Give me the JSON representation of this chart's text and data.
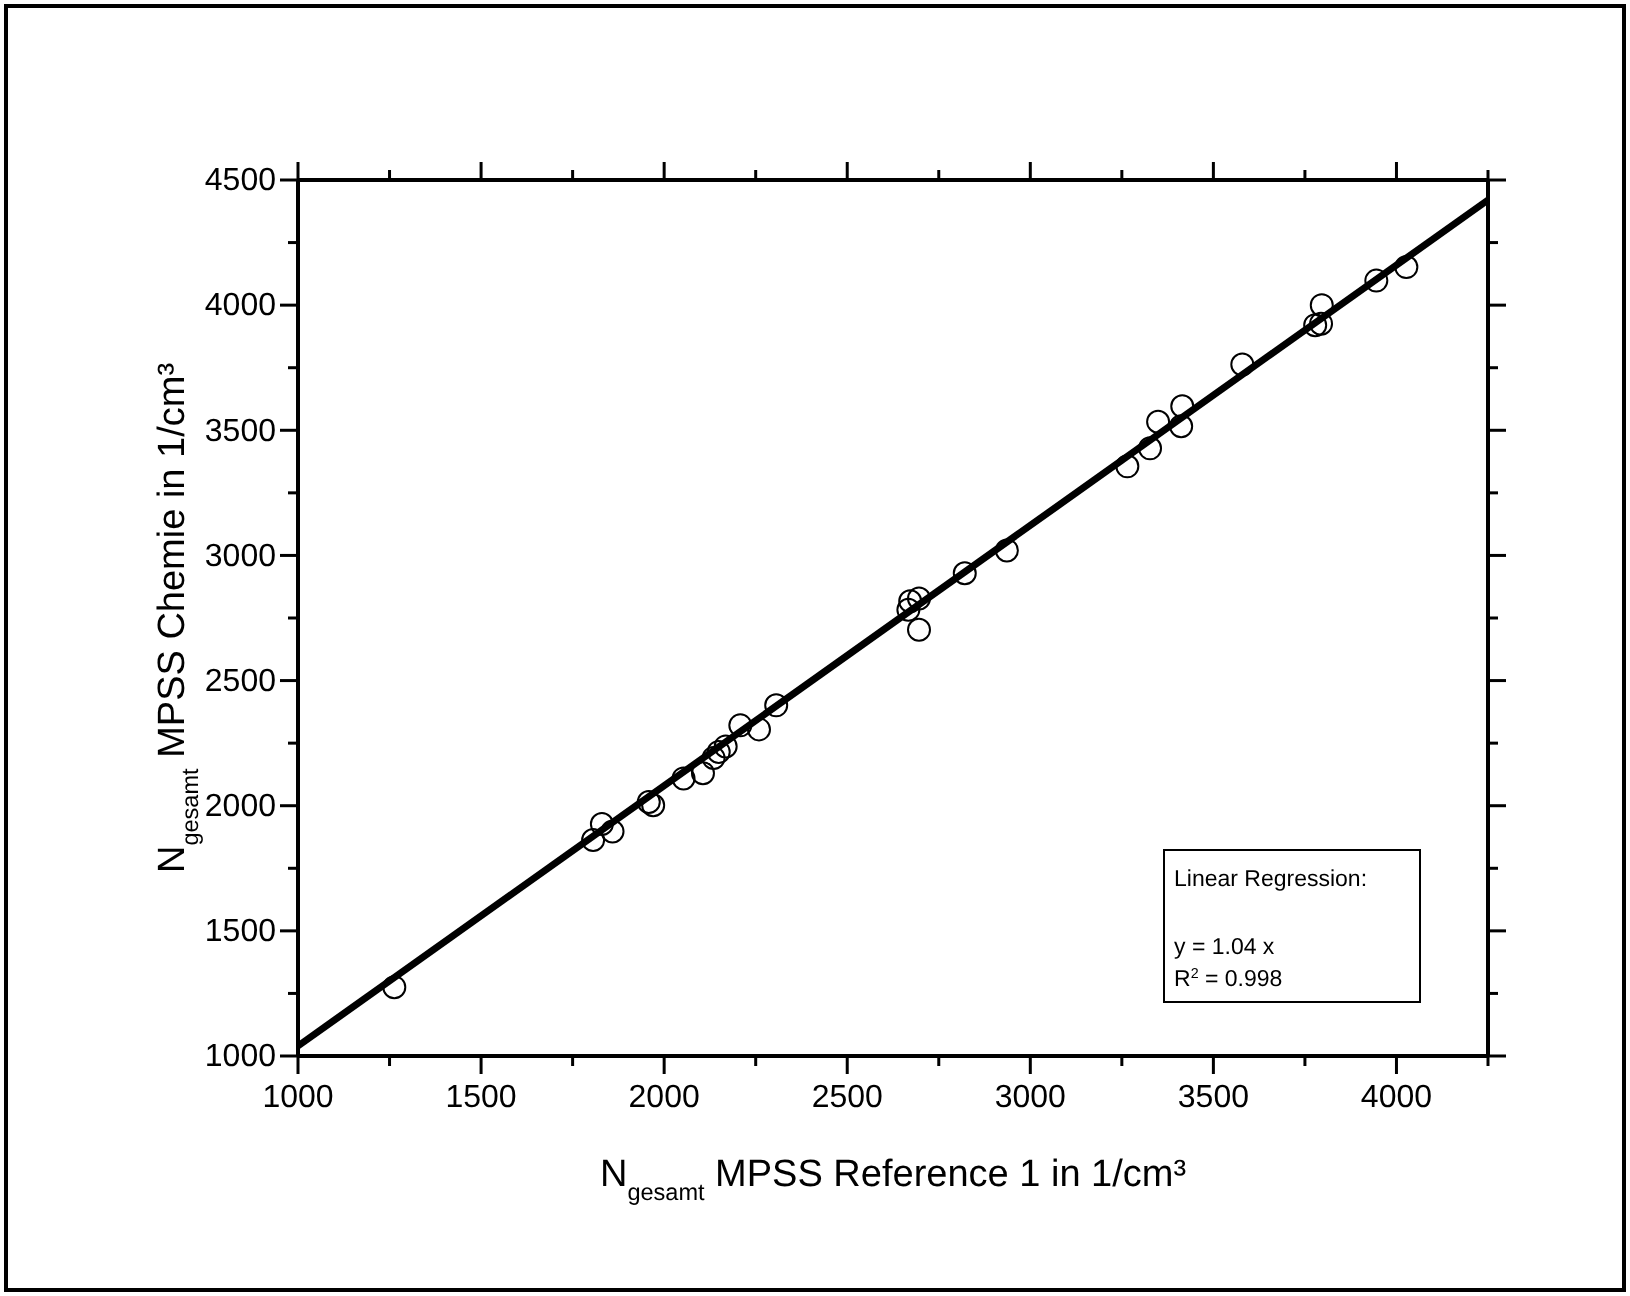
{
  "chart_data": {
    "type": "scatter",
    "xlabel": "N$_{gesamt}$ MPSS Reference 1 in 1/cm³",
    "ylabel": "N$_{gesamt}$ MPSS Chemie in 1/cm³",
    "xlim": [
      1000,
      4250
    ],
    "ylim": [
      1000,
      4500
    ],
    "xticks": [
      1000,
      {
        "value": 1250,
        "label": null
      },
      1500,
      {
        "value": 1750,
        "label": null
      },
      2000,
      {
        "value": 2250,
        "label": null
      },
      2500,
      {
        "value": 2750,
        "label": null
      },
      3000,
      {
        "value": 3250,
        "label": null
      },
      3500,
      {
        "value": 3750,
        "label": null
      },
      4000,
      {
        "value": 4250,
        "label": null
      }
    ],
    "yticks": [
      1000,
      {
        "value": 1250,
        "label": null
      },
      1500,
      {
        "value": 1750,
        "label": null
      },
      2000,
      {
        "value": 2250,
        "label": null
      },
      2500,
      {
        "value": 2750,
        "label": null
      },
      3000,
      {
        "value": 3250,
        "label": null
      },
      3500,
      {
        "value": 3750,
        "label": null
      },
      4000,
      {
        "value": 4250,
        "label": null
      },
      4500
    ],
    "grid": false,
    "marker": "circle",
    "series": [
      {
        "color": "#000000",
        "x": [
          1263,
          1806,
          1830,
          1859,
          1958,
          1970,
          2053,
          2106,
          2135,
          2149,
          2168,
          2208,
          2259,
          2306,
          2667,
          2672,
          2696,
          2696,
          2821,
          2936,
          3265,
          3327,
          3349,
          3412,
          3415,
          3579,
          3778,
          3794,
          3796,
          3945,
          4027
        ],
        "values": [
          1275,
          1863,
          1927,
          1897,
          2015,
          2002,
          2109,
          2130,
          2191,
          2215,
          2237,
          2321,
          2305,
          2401,
          2783,
          2817,
          2828,
          2703,
          2929,
          3020,
          3356,
          3428,
          3534,
          3516,
          3596,
          3763,
          3920,
          3926,
          4000,
          4098,
          4152
        ]
      },
      {
        "type": "line",
        "color": "#000000",
        "line_style": "solid",
        "marker": "none",
        "x": [
          1000,
          4250
        ],
        "values": [
          1040,
          4420
        ]
      }
    ],
    "annotations": [
      "Linear Regression:",
      "y = 1.04 x",
      "R$^{2}$ = 0.998"
    ]
  }
}
